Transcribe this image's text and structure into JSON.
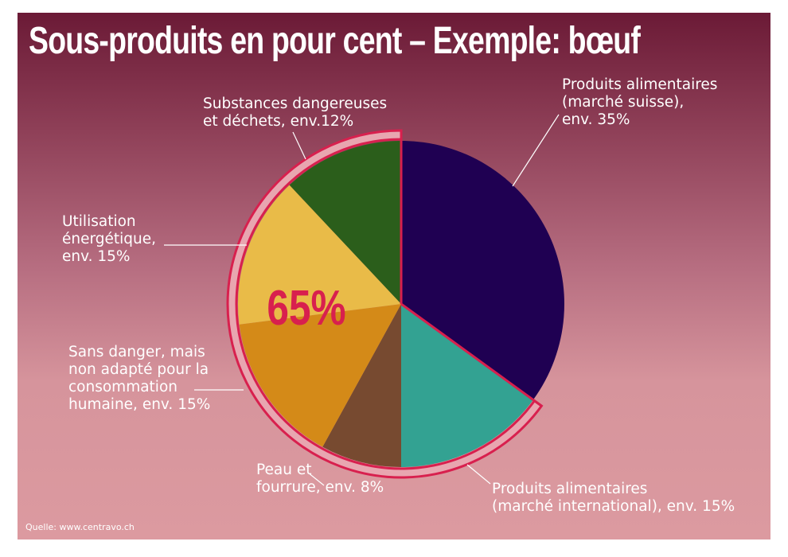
{
  "title": "Sous-produits en pour cent – Exemple: bœuf",
  "source": "Quelle: www.centravo.ch",
  "highlight_text": "65%",
  "chart_data": {
    "type": "pie",
    "start": "top",
    "direction": "clockwise",
    "slices": [
      {
        "label": "Produits alimentaires\n(marché suisse),\nenv. 35%",
        "value": 35,
        "color": "#1f0052"
      },
      {
        "label": "Produits alimentaires\n(marché international), env. 15%",
        "value": 15,
        "color": "#33a292"
      },
      {
        "label": "Peau et\nfourrure, env. 8%",
        "value": 8,
        "color": "#774a30"
      },
      {
        "label": "Sans danger, mais\nnon adapté pour la\nconsommation\nhumaine, env. 15%",
        "value": 15,
        "color": "#d48a18"
      },
      {
        "label": "Utilisation\nénergétique,\nenv. 15%",
        "value": 15,
        "color": "#e9bb48"
      },
      {
        "label": "Substances dangereuses\net déchets, env.12%",
        "value": 12,
        "color": "#2b5e1b"
      }
    ],
    "highlight": {
      "from_slice": 1,
      "to_slice": 5,
      "color": "#d8204e"
    }
  }
}
